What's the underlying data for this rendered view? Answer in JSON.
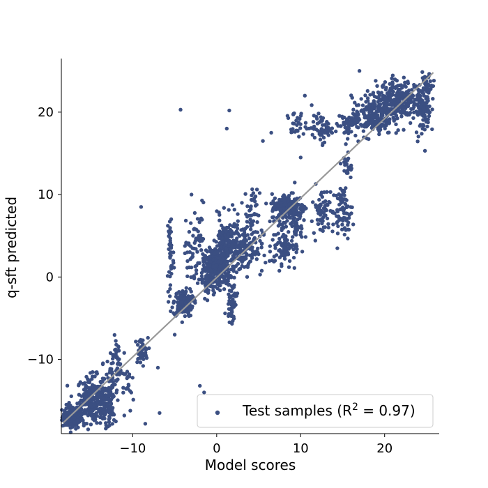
{
  "chart_data": {
    "type": "scatter",
    "title": "",
    "xlabel": "Model scores",
    "ylabel": "q-sft predicted",
    "xlim": [
      -18.5,
      26.5
    ],
    "ylim": [
      -19,
      26.5
    ],
    "xticks": [
      -10,
      0,
      10,
      20
    ],
    "yticks": [
      -10,
      0,
      10,
      20
    ],
    "xtick_labels": [
      "−10",
      "0",
      "10",
      "20"
    ],
    "ytick_labels": [
      "−10",
      "0",
      "10",
      "20"
    ],
    "grid": false,
    "legend_placement": "lower-right",
    "point_color": "#3b4f82",
    "fit_line_color": "#999999",
    "fit_line": {
      "x": [
        -18.3,
        25.8
      ],
      "y": [
        -17.7,
        24.8
      ]
    },
    "series": [
      {
        "legend_text": "Test samples (R",
        "legend_sup": "2",
        "legend_suffix": " = 0.97)",
        "clusters": [
          {
            "xc": -17.2,
            "yc": -17.0,
            "sx": 0.6,
            "sy": 0.7,
            "n": 140
          },
          {
            "xc": -15.0,
            "yc": -14.8,
            "sx": 0.8,
            "sy": 1.4,
            "n": 200
          },
          {
            "xc": -13.3,
            "yc": -15.5,
            "sx": 0.6,
            "sy": 1.5,
            "n": 110
          },
          {
            "xc": -12.4,
            "yc": -13.0,
            "sx": 0.4,
            "sy": 2.5,
            "n": 60
          },
          {
            "xc": -11.8,
            "yc": -10.0,
            "sx": 0.25,
            "sy": 1.0,
            "n": 30
          },
          {
            "xc": -9.0,
            "yc": -9.0,
            "sx": 0.4,
            "sy": 0.8,
            "n": 50
          },
          {
            "xc": -10.5,
            "yc": -13.5,
            "sx": 0.3,
            "sy": 1.5,
            "n": 20
          },
          {
            "xc": -5.5,
            "yc": 3.0,
            "sx": 0.2,
            "sy": 3.0,
            "n": 40
          },
          {
            "xc": -4.0,
            "yc": -3.2,
            "sx": 0.6,
            "sy": 0.8,
            "n": 140
          },
          {
            "xc": -3.0,
            "yc": 3.0,
            "sx": 0.4,
            "sy": 2.0,
            "n": 40
          },
          {
            "xc": -2.0,
            "yc": 5.0,
            "sx": 0.3,
            "sy": 2.0,
            "n": 25
          },
          {
            "xc": -1.2,
            "yc": -0.5,
            "sx": 0.4,
            "sy": 1.5,
            "n": 40
          },
          {
            "xc": 0.0,
            "yc": 1.0,
            "sx": 0.8,
            "sy": 1.0,
            "n": 240
          },
          {
            "xc": 1.2,
            "yc": 3.5,
            "sx": 0.8,
            "sy": 1.8,
            "n": 240
          },
          {
            "xc": 1.8,
            "yc": -3.0,
            "sx": 0.3,
            "sy": 1.2,
            "n": 50
          },
          {
            "xc": 3.5,
            "yc": 3.5,
            "sx": 1.0,
            "sy": 1.5,
            "n": 120
          },
          {
            "xc": 4.2,
            "yc": 8.0,
            "sx": 0.3,
            "sy": 1.3,
            "n": 30
          },
          {
            "xc": 7.8,
            "yc": 4.0,
            "sx": 0.6,
            "sy": 1.5,
            "n": 80
          },
          {
            "xc": 8.5,
            "yc": 8.5,
            "sx": 1.0,
            "sy": 0.8,
            "n": 200
          },
          {
            "xc": 9.5,
            "yc": 6.5,
            "sx": 0.4,
            "sy": 2.0,
            "n": 50
          },
          {
            "xc": 12.5,
            "yc": 8.0,
            "sx": 0.5,
            "sy": 1.5,
            "n": 60
          },
          {
            "xc": 15.0,
            "yc": 8.0,
            "sx": 0.6,
            "sy": 1.5,
            "n": 80
          },
          {
            "xc": 15.5,
            "yc": 13.5,
            "sx": 0.3,
            "sy": 0.8,
            "n": 20
          },
          {
            "xc": 9.5,
            "yc": 18.5,
            "sx": 0.6,
            "sy": 0.8,
            "n": 30
          },
          {
            "xc": 12.5,
            "yc": 18.0,
            "sx": 0.6,
            "sy": 0.8,
            "n": 60
          },
          {
            "xc": 15.5,
            "yc": 18.5,
            "sx": 0.6,
            "sy": 0.8,
            "n": 50
          },
          {
            "xc": 18.5,
            "yc": 19.5,
            "sx": 1.2,
            "sy": 1.2,
            "n": 200
          },
          {
            "xc": 21.5,
            "yc": 21.5,
            "sx": 1.2,
            "sy": 1.2,
            "n": 260
          },
          {
            "xc": 24.5,
            "yc": 20.0,
            "sx": 0.5,
            "sy": 1.5,
            "n": 80
          },
          {
            "xc": 25.0,
            "yc": 23.0,
            "sx": 0.5,
            "sy": 1.0,
            "n": 50
          }
        ],
        "outliers": [
          [
            -4.3,
            20.3
          ],
          [
            1.5,
            20.2
          ],
          [
            1.2,
            18.0
          ],
          [
            -9.0,
            8.5
          ],
          [
            -2.0,
            -13.2
          ],
          [
            -1.5,
            -14.0
          ],
          [
            -6.8,
            -16.5
          ],
          [
            -8.5,
            -17.8
          ],
          [
            5.5,
            16.5
          ],
          [
            10.5,
            22.0
          ],
          [
            -7.0,
            -11.0
          ],
          [
            -11.0,
            -16.8
          ],
          [
            -3.0,
            10.0
          ],
          [
            3.0,
            9.0
          ],
          [
            10.0,
            14.5
          ],
          [
            -5.0,
            -7.0
          ],
          [
            17.0,
            25.0
          ],
          [
            6.5,
            17.5
          ]
        ]
      }
    ]
  }
}
